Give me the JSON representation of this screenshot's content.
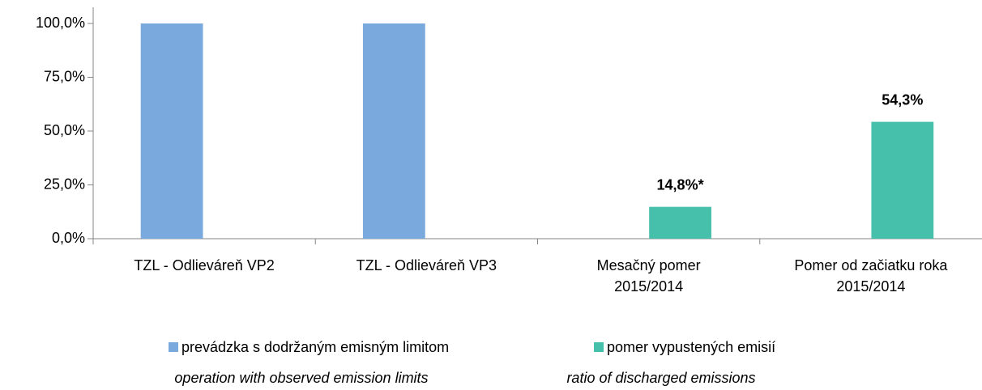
{
  "chart_data": {
    "type": "bar",
    "categories": [
      "TZL - Odlieváreň VP2",
      "TZL - Odlieváreň VP3",
      "Mesačný pomer\n2015/2014",
      "Pomer  od začiatku roka\n2015/2014"
    ],
    "series": [
      {
        "name": "prevádzka s dodržaným emisným limitom",
        "name_en": "operation with observed emission limits",
        "color": "#7aa9de",
        "values": [
          100,
          100,
          null,
          null
        ]
      },
      {
        "name": "pomer vypustených emisií",
        "name_en": "ratio of discharged emissions",
        "color": "#47c0ab",
        "values": [
          null,
          null,
          14.8,
          54.3
        ],
        "value_labels": [
          null,
          null,
          "14,8%*",
          "54,3%"
        ]
      }
    ],
    "ylim": [
      0,
      100
    ],
    "yticks": [
      {
        "value": 0,
        "label": "0,0%"
      },
      {
        "value": 25,
        "label": "25,0%"
      },
      {
        "value": 50,
        "label": "50,0%"
      },
      {
        "value": 75,
        "label": "75,0%"
      },
      {
        "value": 100,
        "label": "100,0%"
      }
    ],
    "grid": false,
    "legend": "bottom"
  }
}
